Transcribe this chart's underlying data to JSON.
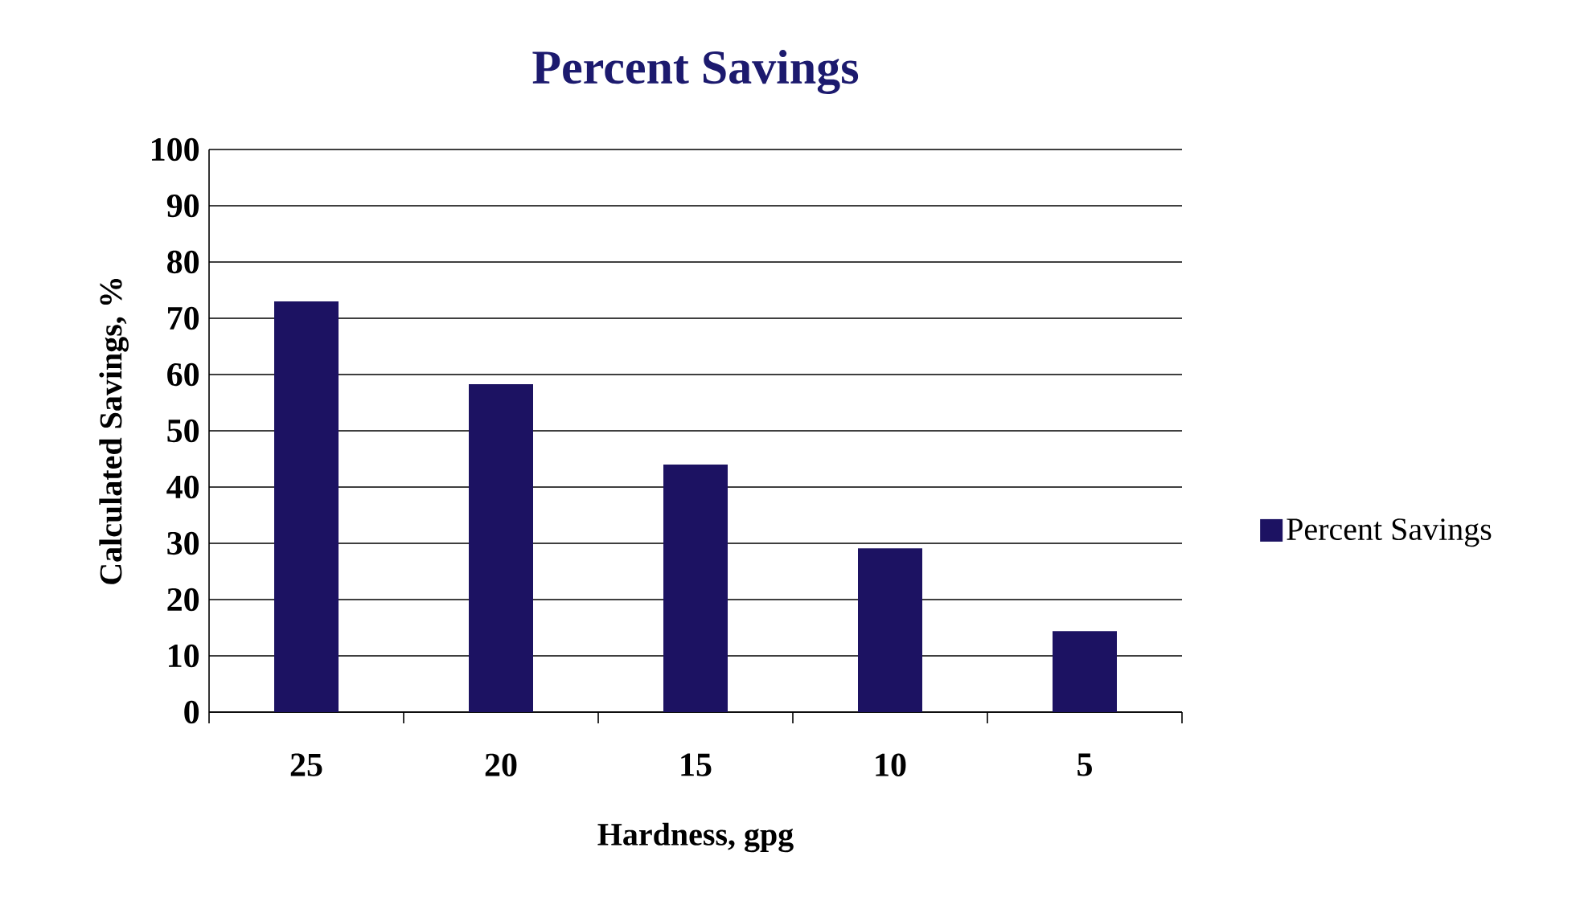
{
  "chart_data": {
    "type": "bar",
    "title": "Percent Savings",
    "xlabel": "Hardness, gpg",
    "ylabel": "Calculated Savings, %",
    "categories": [
      "25",
      "20",
      "15",
      "10",
      "5"
    ],
    "series": [
      {
        "name": "Percent Savings",
        "color": "#1c1262",
        "values": [
          73,
          58.3,
          44,
          29.1,
          14.4
        ]
      }
    ],
    "ylim": [
      0,
      100
    ],
    "yticks": [
      0,
      10,
      20,
      30,
      40,
      50,
      60,
      70,
      80,
      90,
      100
    ],
    "grid": "y",
    "legend": "right"
  }
}
